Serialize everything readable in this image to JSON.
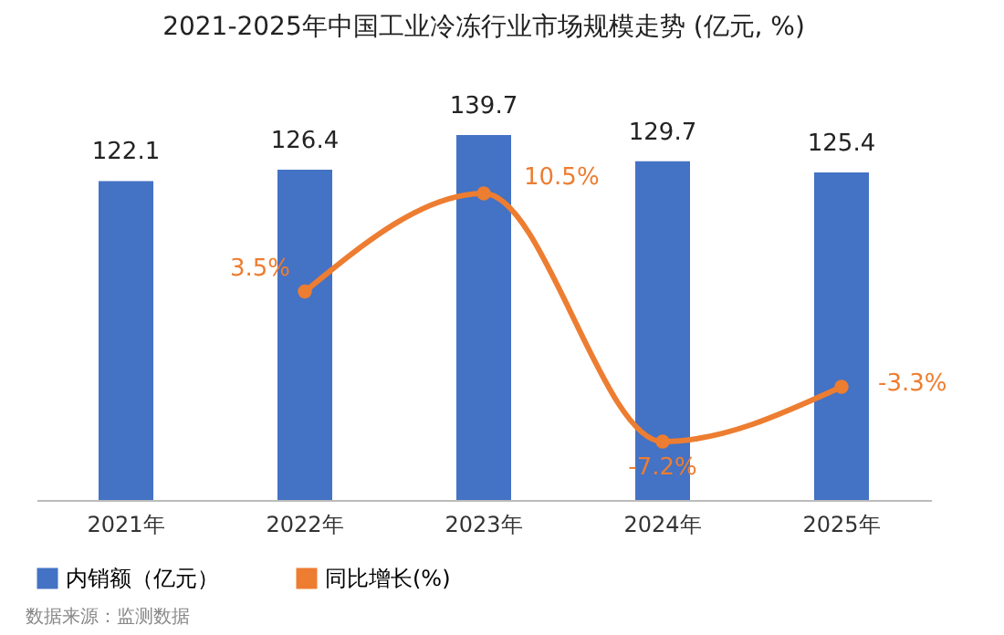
{
  "chart_data": {
    "type": "bar",
    "title": "2021-2025年中国工业冷冻行业市场规模走势 (亿元, %)",
    "categories": [
      "2021年",
      "2022年",
      "2023年",
      "2024年",
      "2025年"
    ],
    "series": [
      {
        "name": "内销额（亿元）",
        "type": "bar",
        "color": "#4472c4",
        "values": [
          122.1,
          126.4,
          139.7,
          129.7,
          125.4
        ]
      },
      {
        "name": "同比增长(%)",
        "type": "line",
        "axis": "y2",
        "color": "#ed7d31",
        "values": [
          null,
          3.5,
          10.5,
          -7.2,
          -3.3
        ],
        "value_labels": [
          null,
          "3.5%",
          "10.5%",
          "-7.2%",
          "-3.3%"
        ]
      }
    ],
    "data_labels": true,
    "tick_labels": "x",
    "grid": false,
    "legend": "bottom",
    "marker": "circle",
    "annotations": [
      "数据来源：监测数据"
    ]
  }
}
